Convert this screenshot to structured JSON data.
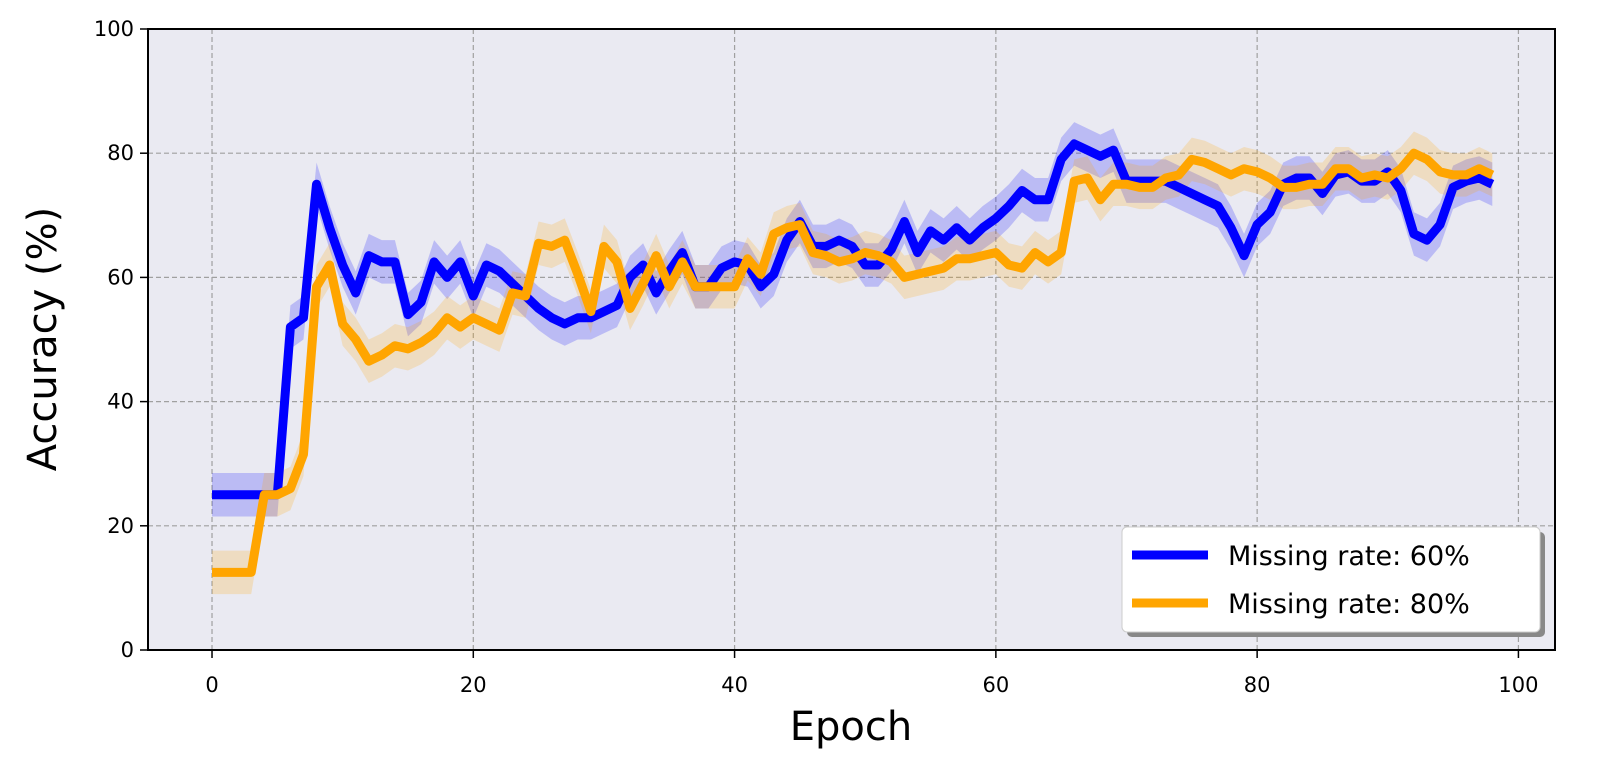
{
  "chart_data": {
    "type": "line",
    "xlabel": "Epoch",
    "ylabel": "Accuracy (%)",
    "x": [
      0,
      1,
      2,
      3,
      4,
      5,
      6,
      7,
      8,
      9,
      10,
      11,
      12,
      13,
      14,
      15,
      16,
      17,
      18,
      19,
      20,
      21,
      22,
      23,
      24,
      25,
      26,
      27,
      28,
      29,
      30,
      31,
      32,
      33,
      34,
      35,
      36,
      37,
      38,
      39,
      40,
      41,
      42,
      43,
      44,
      45,
      46,
      47,
      48,
      49,
      50,
      51,
      52,
      53,
      54,
      55,
      56,
      57,
      58,
      59,
      60,
      61,
      62,
      63,
      64,
      65,
      66,
      67,
      68,
      69,
      70,
      71,
      72,
      73,
      74,
      75,
      76,
      77,
      78,
      79,
      80,
      81,
      82,
      83,
      84,
      85,
      86,
      87,
      88,
      89,
      90,
      91,
      92,
      93,
      94,
      95,
      96,
      97,
      98
    ],
    "series": [
      {
        "name": "Missing rate: 60%",
        "color": "#0000ff",
        "error": 3.5,
        "values": [
          25,
          25,
          25,
          25,
          25,
          25,
          52,
          53.5,
          75,
          68,
          62,
          57.5,
          63.5,
          62.5,
          62.5,
          54,
          56,
          62.5,
          60,
          62.5,
          57,
          62,
          61,
          59,
          57,
          55,
          53.5,
          52.5,
          53.5,
          53.5,
          54.5,
          55.5,
          60,
          62,
          57.5,
          61,
          64,
          58.5,
          58.5,
          61.5,
          62.5,
          62,
          58.5,
          60.5,
          66,
          69,
          65,
          65,
          66,
          65,
          62,
          62,
          64.5,
          69,
          64,
          67.5,
          66,
          68,
          66,
          68,
          69.5,
          71.5,
          74,
          72.5,
          72.5,
          79,
          81.5,
          80.5,
          79.5,
          80.5,
          75.5,
          75.5,
          75.5,
          75.5,
          74.5,
          73.5,
          72.5,
          71.5,
          68,
          63.5,
          68.5,
          70.5,
          75,
          76,
          76,
          73.5,
          76.5,
          77,
          75.5,
          75.5,
          77,
          74,
          67,
          66,
          68.5,
          74.5,
          75.5,
          76,
          75
        ]
      },
      {
        "name": "Missing rate: 80%",
        "color": "#ffa500",
        "error": 3.5,
        "values": [
          12.5,
          12.5,
          12.5,
          12.5,
          25,
          25,
          26,
          31.5,
          58.5,
          62,
          52.5,
          50,
          46.5,
          47.5,
          49,
          48.5,
          49.5,
          51,
          53.5,
          52,
          53.5,
          52.5,
          51.5,
          57.5,
          57,
          65.5,
          65,
          66,
          60.5,
          54.5,
          65,
          62.5,
          55,
          59,
          63.5,
          58.5,
          62.5,
          58.5,
          58.5,
          58.5,
          58.5,
          63,
          60.5,
          67,
          68,
          68.5,
          64,
          63.5,
          62.5,
          63,
          64,
          63.5,
          62.5,
          60,
          60.5,
          61,
          61.5,
          63,
          63,
          63.5,
          64,
          62,
          61.5,
          64,
          62.5,
          64,
          75.5,
          76,
          72.5,
          75,
          75,
          74.5,
          74.5,
          76,
          76.5,
          79,
          78.5,
          77.5,
          76.5,
          77.5,
          77,
          76,
          74.5,
          74.5,
          75,
          75,
          77.5,
          77.5,
          76,
          76.5,
          76,
          77.5,
          80,
          79,
          77,
          76.5,
          76.5,
          77.5,
          76.5
        ]
      }
    ],
    "xlim": [
      -4.9,
      102.8
    ],
    "ylim": [
      0,
      100
    ],
    "xticks": [
      0,
      20,
      40,
      60,
      80,
      100
    ],
    "yticks": [
      0,
      20,
      40,
      60,
      80,
      100
    ],
    "grid": true,
    "legend": "lower right"
  }
}
